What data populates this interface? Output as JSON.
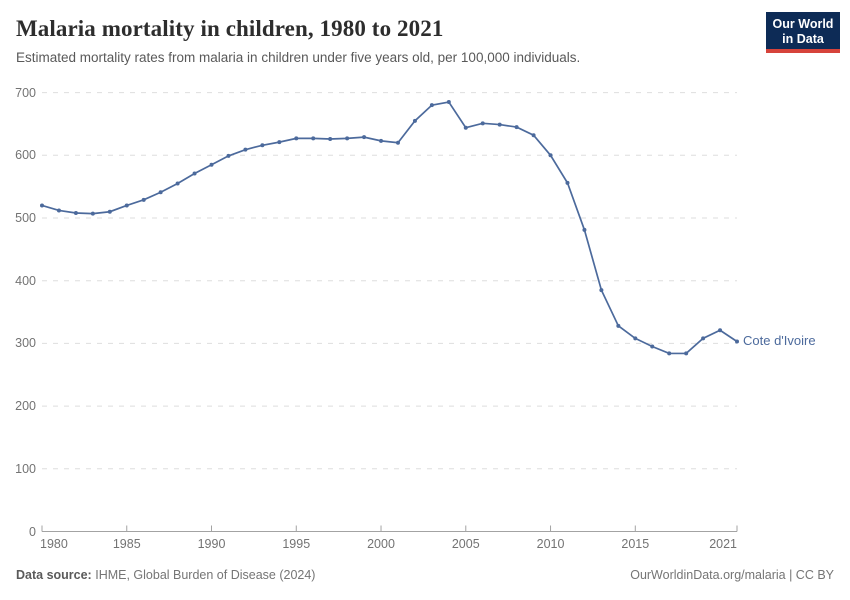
{
  "header": {
    "title": "Malaria mortality in children, 1980 to 2021",
    "subtitle": "Estimated mortality rates from malaria in children under five years old, per 100,000 individuals.",
    "logo": {
      "line1": "Our World",
      "line2": "in Data",
      "bg_color": "#0d2b56",
      "accent_color": "#d6433b"
    }
  },
  "chart_data": {
    "type": "line",
    "title": "Malaria mortality in children, 1980 to 2021",
    "xlabel": "",
    "ylabel": "",
    "xlim": [
      1980,
      2021
    ],
    "ylim": [
      0,
      700
    ],
    "x_ticks": [
      1980,
      1985,
      1990,
      1995,
      2000,
      2005,
      2010,
      2015,
      2021
    ],
    "y_ticks": [
      0,
      100,
      200,
      300,
      400,
      500,
      600,
      700
    ],
    "grid": "horizontal-dashed",
    "legend_position": "end-of-line",
    "end_label": "Cote d'Ivoire",
    "series": [
      {
        "name": "Cote d'Ivoire",
        "color": "#4c6a9c",
        "x": [
          1980,
          1981,
          1982,
          1983,
          1984,
          1985,
          1986,
          1987,
          1988,
          1989,
          1990,
          1991,
          1992,
          1993,
          1994,
          1995,
          1996,
          1997,
          1998,
          1999,
          2000,
          2001,
          2002,
          2003,
          2004,
          2005,
          2006,
          2007,
          2008,
          2009,
          2010,
          2011,
          2012,
          2013,
          2014,
          2015,
          2016,
          2017,
          2018,
          2019,
          2020,
          2021
        ],
        "values": [
          520,
          512,
          508,
          507,
          510,
          520,
          529,
          541,
          555,
          571,
          585,
          599,
          609,
          616,
          621,
          627,
          627,
          626,
          627,
          629,
          623,
          620,
          655,
          680,
          685,
          644,
          651,
          649,
          645,
          632,
          600,
          556,
          481,
          385,
          328,
          308,
          295,
          284,
          284,
          308,
          321,
          303
        ]
      }
    ]
  },
  "footer": {
    "source_label": "Data source:",
    "source_text": "IHME, Global Burden of Disease (2024)",
    "credit": "OurWorldinData.org/malaria | CC BY"
  }
}
